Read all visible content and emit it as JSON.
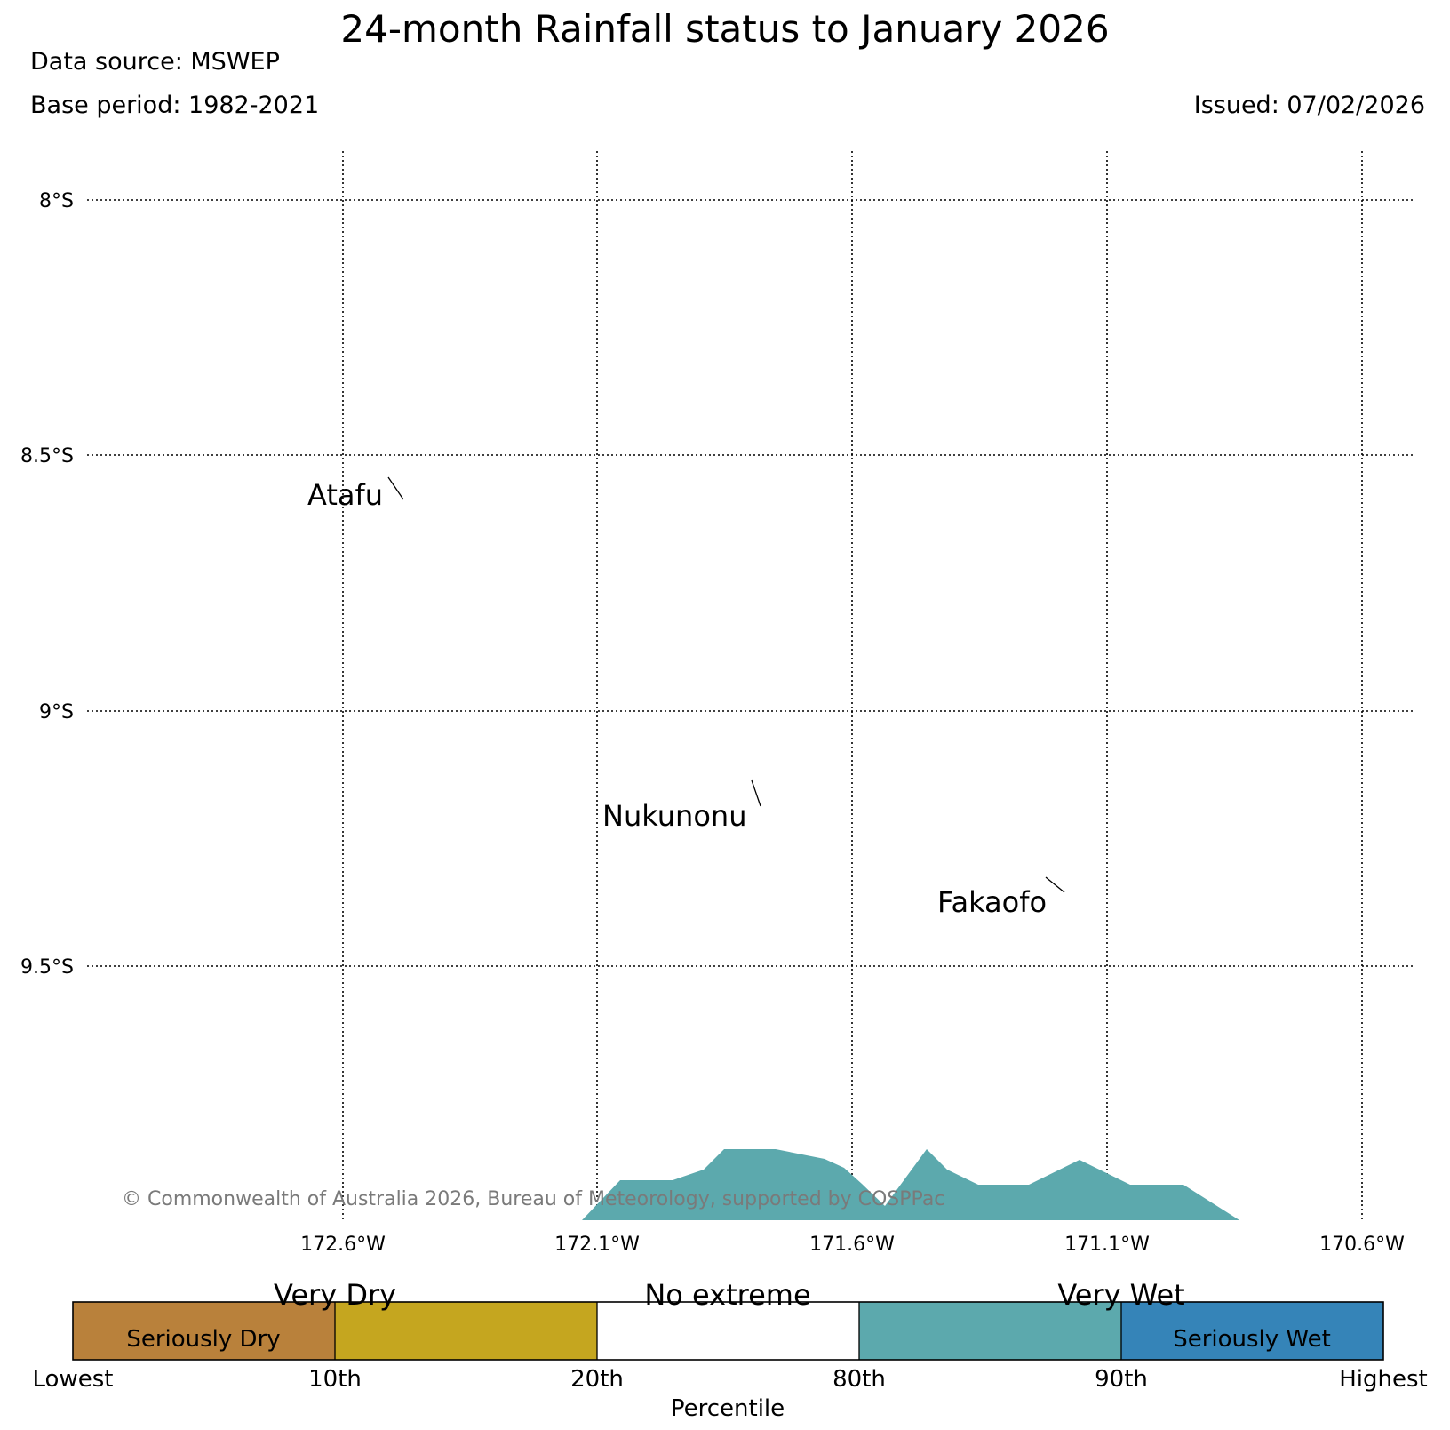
{
  "title": "24-month Rainfall status to January 2026",
  "data_source": "Data source: MSWEP",
  "base_period": "Base period: 1982-2021",
  "issued": "Issued: 07/02/2026",
  "copyright": "© Commonwealth of Australia 2026, Bureau of Meteorology, supported by COSPPac",
  "map": {
    "lat_labels": [
      "8°S",
      "8.5°S",
      "9°S",
      "9.5°S"
    ],
    "lon_labels": [
      "172.6°W",
      "172.1°W",
      "171.6°W",
      "171.1°W",
      "170.6°W"
    ],
    "places": [
      "Atafu",
      "Nukunonu",
      "Fakaofo"
    ]
  },
  "legend": {
    "category_labels": [
      "Very Dry",
      "No extreme",
      "Very Wet"
    ],
    "inner_labels": [
      "Seriously Dry",
      "Seriously Wet"
    ],
    "tick_labels": [
      "Lowest",
      "10th",
      "20th",
      "80th",
      "90th",
      "Highest"
    ],
    "axis_label": "Percentile",
    "colors": {
      "seriously_dry": "#b9813b",
      "very_dry": "#c5a61f",
      "no_extreme": "#ffffff",
      "very_wet": "#5ca9ad",
      "seriously_wet": "#3584b8"
    }
  },
  "region_fill_color": "#5ca9ad"
}
